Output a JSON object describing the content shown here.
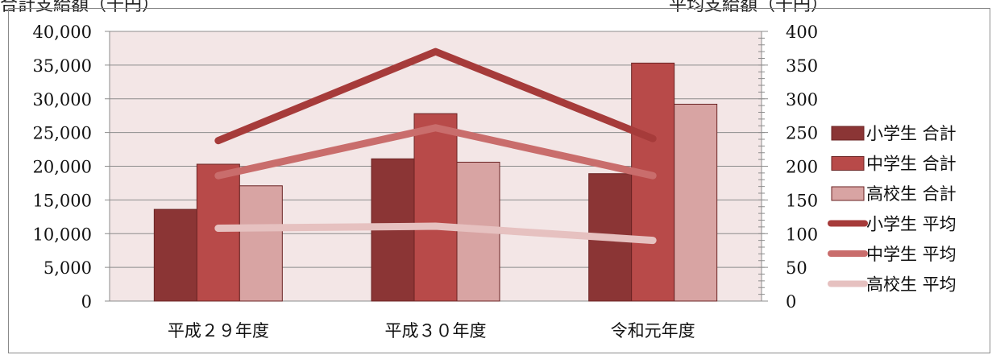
{
  "chart_data": {
    "type": "bar",
    "title": "",
    "ylabel": "合計支給額（千円）",
    "y2label": "平均支給額（千円）",
    "categories": [
      "平成２９年度",
      "平成３０年度",
      "令和元年度"
    ],
    "ylim": [
      0,
      40000
    ],
    "y2lim": [
      0,
      400
    ],
    "yticks": [
      "0",
      "5,000",
      "10,000",
      "15,000",
      "20,000",
      "25,000",
      "30,000",
      "35,000",
      "40,000"
    ],
    "y2ticks": [
      "0",
      "50",
      "100",
      "150",
      "200",
      "250",
      "300",
      "350",
      "400"
    ],
    "grid": true,
    "legend_position": "right",
    "bar_series": [
      {
        "name": "小学生 合計",
        "values": [
          13600,
          21100,
          18900
        ],
        "color": "#8b3535"
      },
      {
        "name": "中学生 合計",
        "values": [
          20300,
          27800,
          35300
        ],
        "color": "#b84a49"
      },
      {
        "name": "高校生 合計",
        "values": [
          17100,
          20600,
          29200
        ],
        "color": "#d8a4a3"
      }
    ],
    "line_series": [
      {
        "name": "小学生 平均",
        "values": [
          238,
          370,
          241
        ],
        "color": "#a63b3a"
      },
      {
        "name": "中学生 平均",
        "values": [
          186,
          257,
          186
        ],
        "color": "#c96d6c"
      },
      {
        "name": "高校生 平均",
        "values": [
          108,
          111,
          90
        ],
        "color": "#e6c1c0"
      }
    ]
  }
}
